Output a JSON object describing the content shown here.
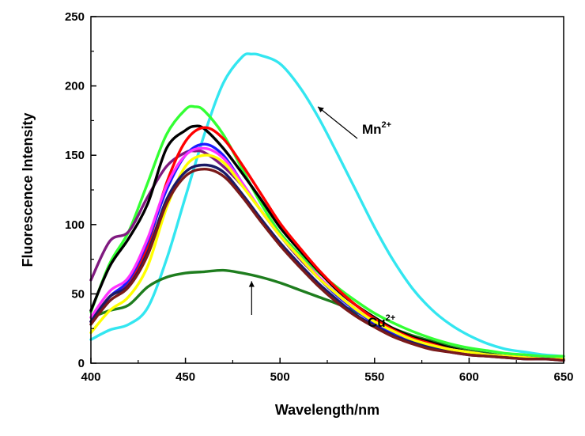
{
  "chart_data": {
    "type": "line",
    "title": "",
    "xlabel": "Wavelength/nm",
    "ylabel": "Fluorescence Intensity",
    "xlim": [
      400,
      650
    ],
    "ylim": [
      0,
      250
    ],
    "xticks": [
      400,
      450,
      500,
      550,
      600,
      650
    ],
    "yticks": [
      0,
      50,
      100,
      150,
      200,
      250
    ],
    "grid": false,
    "legend": "none",
    "annotations": [
      {
        "base": "Mn",
        "sup": "2+",
        "points_to_x": 520,
        "points_to_y": 185
      },
      {
        "base": "Cu",
        "sup": "2+",
        "points_to_x": 485,
        "points_to_y": 62
      }
    ],
    "series": [
      {
        "name": "Mn2+",
        "color": "#33e6f0",
        "x": [
          400,
          410,
          420,
          430,
          440,
          450,
          460,
          470,
          480,
          485,
          490,
          500,
          510,
          520,
          530,
          540,
          550,
          560,
          570,
          580,
          590,
          600,
          610,
          620,
          630,
          640,
          650
        ],
        "y": [
          17,
          24,
          28,
          40,
          75,
          120,
          165,
          202,
          221,
          223,
          222,
          216,
          200,
          178,
          152,
          125,
          98,
          74,
          54,
          39,
          28,
          20,
          14,
          10,
          8,
          6,
          5
        ]
      },
      {
        "name": "Cu2+",
        "color": "#1e7d1e",
        "x": [
          400,
          410,
          420,
          430,
          440,
          450,
          460,
          470,
          480,
          490,
          500,
          510,
          520,
          530,
          540,
          550,
          560,
          570,
          580,
          590,
          600,
          610,
          620,
          630,
          640,
          650
        ],
        "y": [
          33,
          38,
          42,
          55,
          62,
          65,
          66,
          67,
          65,
          62,
          58,
          53,
          48,
          43,
          37,
          31,
          25,
          20,
          16,
          12,
          9,
          7,
          5,
          4,
          3,
          3
        ]
      },
      {
        "name": "green",
        "color": "#33ff33",
        "x": [
          400,
          410,
          420,
          430,
          440,
          450,
          455,
          460,
          470,
          480,
          490,
          500,
          510,
          520,
          530,
          540,
          550,
          560,
          570,
          580,
          590,
          600,
          610,
          620,
          630,
          640,
          650
        ],
        "y": [
          37,
          72,
          95,
          130,
          165,
          183,
          185,
          182,
          165,
          140,
          115,
          94,
          79,
          66,
          55,
          45,
          36,
          29,
          23,
          18,
          14,
          11,
          9,
          7,
          6,
          5,
          5
        ]
      },
      {
        "name": "purple",
        "color": "#801a80",
        "x": [
          400,
          410,
          420,
          430,
          440,
          450,
          455,
          460,
          470,
          480,
          490,
          500,
          510,
          520,
          530,
          540,
          550,
          560,
          570,
          580,
          590,
          600,
          610,
          620,
          630,
          640,
          650
        ],
        "y": [
          60,
          88,
          95,
          120,
          142,
          152,
          153,
          152,
          142,
          128,
          110,
          92,
          76,
          62,
          50,
          39,
          30,
          23,
          17,
          13,
          10,
          8,
          6,
          5,
          4,
          3,
          3
        ]
      },
      {
        "name": "black",
        "color": "#000000",
        "x": [
          400,
          410,
          420,
          430,
          440,
          450,
          455,
          460,
          470,
          480,
          490,
          500,
          510,
          520,
          530,
          540,
          550,
          560,
          570,
          580,
          590,
          600,
          610,
          620,
          630,
          640,
          650
        ],
        "y": [
          38,
          70,
          90,
          115,
          155,
          168,
          171,
          169,
          155,
          137,
          118,
          98,
          82,
          67,
          53,
          42,
          33,
          25,
          19,
          15,
          11,
          8,
          6,
          5,
          4,
          3,
          3
        ]
      },
      {
        "name": "red",
        "color": "#ff0000",
        "x": [
          400,
          410,
          420,
          430,
          440,
          450,
          460,
          470,
          480,
          490,
          500,
          510,
          520,
          530,
          540,
          550,
          560,
          570,
          580,
          590,
          600,
          610,
          620,
          630,
          640,
          650
        ],
        "y": [
          30,
          48,
          58,
          85,
          130,
          160,
          170,
          162,
          143,
          122,
          101,
          84,
          68,
          54,
          42,
          32,
          24,
          18,
          14,
          10,
          8,
          6,
          5,
          4,
          3,
          3
        ]
      },
      {
        "name": "blue",
        "color": "#1a1aff",
        "x": [
          400,
          410,
          420,
          430,
          440,
          450,
          460,
          470,
          480,
          490,
          500,
          510,
          520,
          530,
          540,
          550,
          560,
          570,
          580,
          590,
          600,
          610,
          620,
          630,
          640,
          650
        ],
        "y": [
          30,
          48,
          60,
          88,
          125,
          150,
          158,
          150,
          130,
          110,
          92,
          77,
          62,
          49,
          38,
          29,
          22,
          17,
          13,
          10,
          8,
          6,
          5,
          4,
          3,
          3
        ]
      },
      {
        "name": "magenta",
        "color": "#ff33ff",
        "x": [
          400,
          410,
          420,
          430,
          440,
          450,
          460,
          470,
          480,
          490,
          500,
          510,
          520,
          530,
          540,
          550,
          560,
          570,
          580,
          590,
          600,
          610,
          620,
          630,
          640,
          650
        ],
        "y": [
          33,
          52,
          62,
          90,
          128,
          150,
          155,
          148,
          130,
          110,
          92,
          77,
          63,
          50,
          39,
          30,
          23,
          17,
          13,
          10,
          8,
          6,
          5,
          4,
          3,
          3
        ]
      },
      {
        "name": "yellow",
        "color": "#ffff00",
        "x": [
          400,
          410,
          420,
          430,
          440,
          450,
          460,
          470,
          480,
          490,
          500,
          510,
          520,
          530,
          540,
          550,
          560,
          570,
          580,
          590,
          600,
          610,
          620,
          630,
          640,
          650
        ],
        "y": [
          22,
          38,
          48,
          70,
          112,
          142,
          150,
          145,
          128,
          110,
          92,
          77,
          62,
          50,
          39,
          30,
          23,
          17,
          13,
          10,
          8,
          6,
          5,
          4,
          3,
          3
        ]
      },
      {
        "name": "navy",
        "color": "#1a1a66",
        "x": [
          400,
          410,
          420,
          430,
          440,
          450,
          460,
          470,
          480,
          490,
          500,
          510,
          520,
          530,
          540,
          550,
          560,
          570,
          580,
          590,
          600,
          610,
          620,
          630,
          640,
          650
        ],
        "y": [
          30,
          48,
          56,
          80,
          118,
          138,
          143,
          138,
          122,
          104,
          87,
          72,
          58,
          46,
          35,
          27,
          20,
          15,
          11,
          8,
          6,
          5,
          4,
          3,
          3,
          2
        ]
      },
      {
        "name": "maroon",
        "color": "#7a1a1a",
        "x": [
          400,
          410,
          420,
          430,
          440,
          450,
          460,
          470,
          480,
          490,
          500,
          510,
          520,
          530,
          540,
          550,
          560,
          570,
          580,
          590,
          600,
          610,
          620,
          630,
          640,
          650
        ],
        "y": [
          28,
          45,
          55,
          78,
          115,
          135,
          140,
          135,
          120,
          102,
          85,
          70,
          56,
          44,
          34,
          26,
          19,
          14,
          10,
          8,
          6,
          5,
          4,
          3,
          3,
          2
        ]
      }
    ]
  }
}
